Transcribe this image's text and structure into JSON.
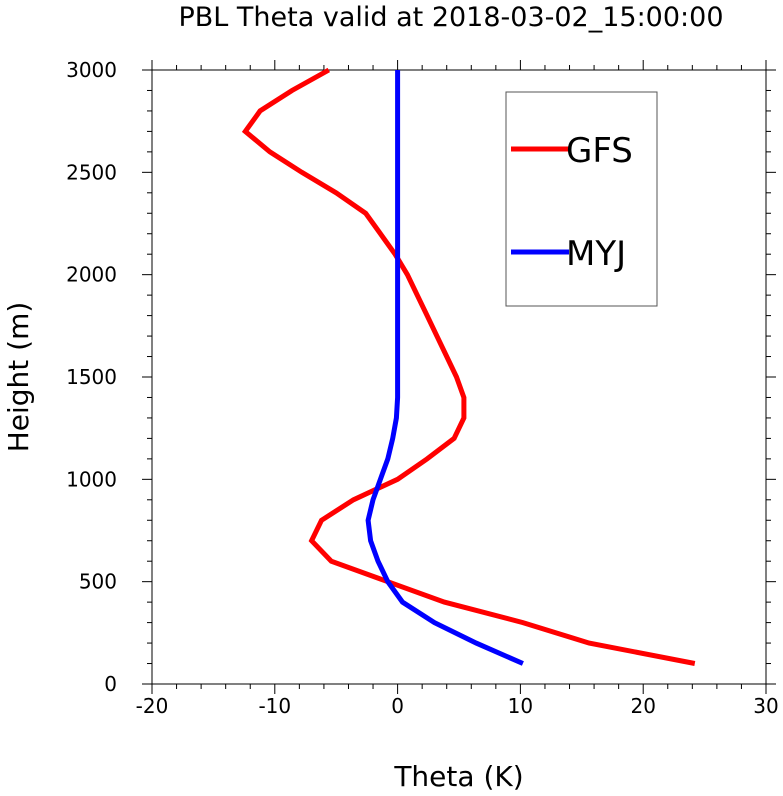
{
  "chart_data": {
    "type": "line",
    "title": "PBL Theta valid at 2018-03-02_15:00:00",
    "xlabel": "Theta (K)",
    "ylabel": "Height (m)",
    "xlim": [
      -20,
      30
    ],
    "ylim": [
      0,
      3000
    ],
    "xticks": [
      "-20",
      "-10",
      "0",
      "10",
      "20",
      "30"
    ],
    "yticks": [
      "0",
      "500",
      "1000",
      "1500",
      "2000",
      "2500",
      "3000"
    ],
    "grid": false,
    "legend_position": "top-right",
    "series": [
      {
        "name": "GFS",
        "color": "#ff0000",
        "points": [
          [
            24.2,
            100
          ],
          [
            15.6,
            200
          ],
          [
            10.2,
            300
          ],
          [
            3.8,
            400
          ],
          [
            -0.8,
            500
          ],
          [
            -5.4,
            600
          ],
          [
            -7.0,
            700
          ],
          [
            -6.2,
            800
          ],
          [
            -3.6,
            900
          ],
          [
            0.0,
            1000
          ],
          [
            2.4,
            1100
          ],
          [
            4.6,
            1200
          ],
          [
            5.4,
            1300
          ],
          [
            5.4,
            1400
          ],
          [
            4.8,
            1500
          ],
          [
            4.0,
            1600
          ],
          [
            3.2,
            1700
          ],
          [
            2.4,
            1800
          ],
          [
            1.6,
            1900
          ],
          [
            0.8,
            2000
          ],
          [
            -0.2,
            2100
          ],
          [
            -1.4,
            2200
          ],
          [
            -2.6,
            2300
          ],
          [
            -5.0,
            2400
          ],
          [
            -7.8,
            2500
          ],
          [
            -10.4,
            2600
          ],
          [
            -12.4,
            2700
          ],
          [
            -11.2,
            2800
          ],
          [
            -8.6,
            2900
          ],
          [
            -5.6,
            3000
          ]
        ]
      },
      {
        "name": "MYJ",
        "color": "#0000ff",
        "points": [
          [
            10.2,
            100
          ],
          [
            6.4,
            200
          ],
          [
            3.0,
            300
          ],
          [
            0.4,
            400
          ],
          [
            -0.8,
            500
          ],
          [
            -1.6,
            600
          ],
          [
            -2.2,
            700
          ],
          [
            -2.4,
            800
          ],
          [
            -2.0,
            900
          ],
          [
            -1.4,
            1000
          ],
          [
            -0.8,
            1100
          ],
          [
            -0.4,
            1200
          ],
          [
            -0.1,
            1300
          ],
          [
            0.0,
            1400
          ],
          [
            0.0,
            1500
          ],
          [
            0.0,
            1600
          ],
          [
            0.0,
            1800
          ],
          [
            0.0,
            2000
          ],
          [
            0.0,
            2200
          ],
          [
            0.0,
            2500
          ],
          [
            0.0,
            2800
          ],
          [
            0.0,
            3000
          ]
        ]
      }
    ]
  }
}
